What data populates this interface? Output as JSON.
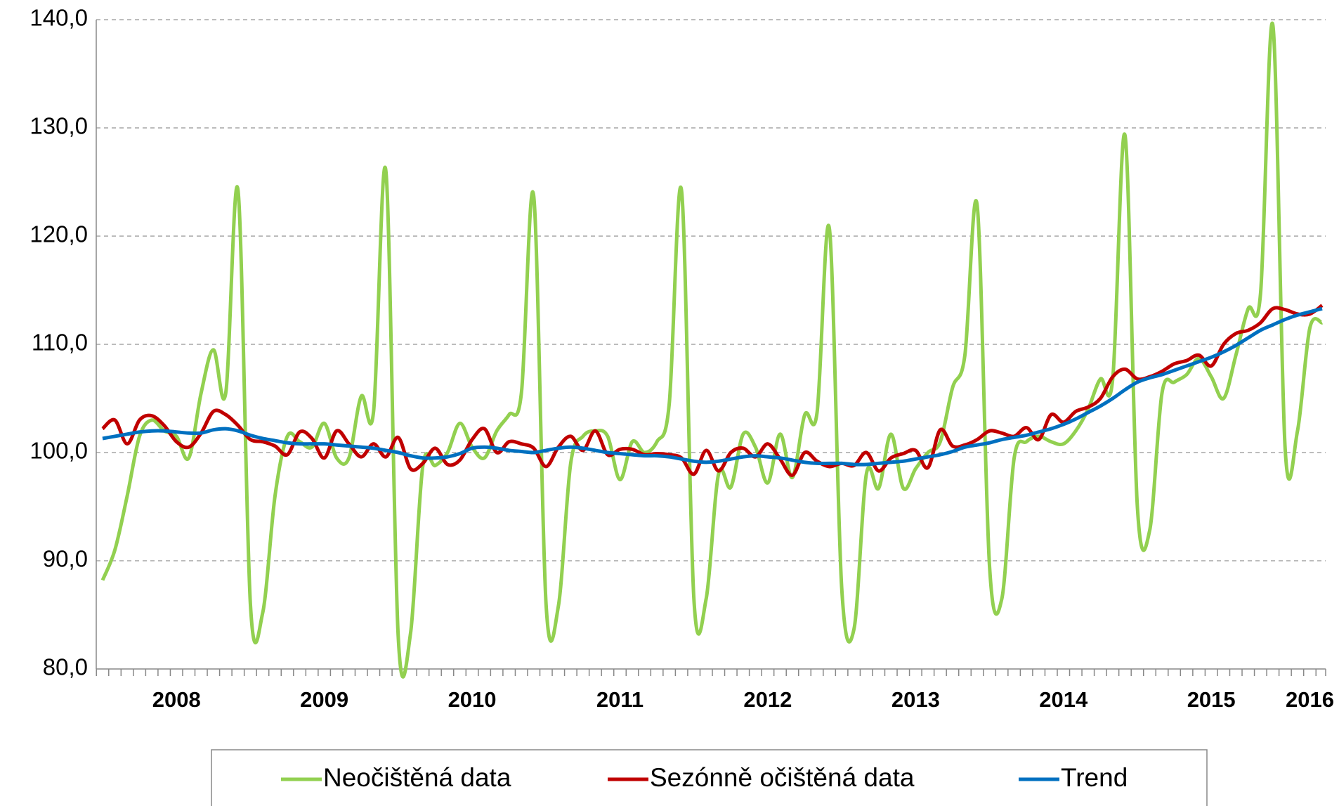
{
  "chart_data": {
    "type": "line",
    "categories": [
      null,
      null,
      null,
      null,
      null,
      null,
      "2008",
      null,
      null,
      null,
      null,
      null,
      null,
      null,
      null,
      null,
      null,
      null,
      "2009",
      null,
      null,
      null,
      null,
      null,
      null,
      null,
      null,
      null,
      null,
      null,
      "2010",
      null,
      null,
      null,
      null,
      null,
      null,
      null,
      null,
      null,
      null,
      null,
      "2011",
      null,
      null,
      null,
      null,
      null,
      null,
      null,
      null,
      null,
      null,
      null,
      "2012",
      null,
      null,
      null,
      null,
      null,
      null,
      null,
      null,
      null,
      null,
      null,
      "2013",
      null,
      null,
      null,
      null,
      null,
      null,
      null,
      null,
      null,
      null,
      null,
      "2014",
      null,
      null,
      null,
      null,
      null,
      null,
      null,
      null,
      null,
      null,
      null,
      "2015",
      null,
      null,
      null,
      null,
      null,
      null,
      null,
      "2016",
      null
    ],
    "series": [
      {
        "name": "Neočištěná data",
        "color": "#92d050",
        "values": [
          88.2,
          91,
          96,
          101.5,
          103,
          102,
          101.5,
          99.5,
          105.5,
          109.5,
          105.5,
          124.2,
          86,
          85.2,
          96,
          101.5,
          101,
          100.5,
          102.7,
          99.5,
          99.5,
          105.2,
          103.8,
          126,
          83,
          83.3,
          98.8,
          98.8,
          100,
          102.7,
          100.5,
          99.5,
          102,
          103.5,
          105.5,
          123.7,
          86,
          85.8,
          99,
          101.5,
          102,
          101.5,
          97.5,
          101,
          100,
          101,
          104.5,
          124.2,
          86.5,
          86.5,
          98,
          96.8,
          101.7,
          100.5,
          97.2,
          101.7,
          97.7,
          103.5,
          103.7,
          120.7,
          87.5,
          83.7,
          98,
          96.7,
          101.7,
          96.7,
          98.5,
          100,
          101,
          106,
          109,
          122.8,
          89.5,
          86.5,
          99.5,
          101,
          101.5,
          101,
          100.8,
          102,
          104,
          106.8,
          106.8,
          129.3,
          95,
          92.8,
          105.5,
          106.5,
          107.2,
          108.7,
          107,
          105,
          109,
          113.3,
          114.7,
          139.5,
          100.3,
          102,
          111.5,
          112
        ]
      },
      {
        "name": "Sezónně očištěná data",
        "color": "#c00000",
        "values": [
          102.2,
          103,
          100.8,
          103,
          103.4,
          102.5,
          101,
          100.5,
          101.8,
          103.8,
          103.5,
          102.5,
          101.2,
          101,
          100.6,
          99.8,
          101.9,
          101.3,
          99.5,
          102,
          100.8,
          99.6,
          100.8,
          99.6,
          101.4,
          98.5,
          99,
          100.4,
          98.9,
          99.3,
          101.2,
          102.2,
          100,
          101,
          100.8,
          100.4,
          98.7,
          100.5,
          101.5,
          100.2,
          102,
          99.8,
          100.3,
          100.3,
          99.8,
          99.9,
          99.8,
          99.5,
          98,
          100.2,
          98.3,
          100,
          100.4,
          99.6,
          100.8,
          99.4,
          97.9,
          100,
          99.2,
          98.7,
          99,
          98.8,
          100,
          98.3,
          99.5,
          99.9,
          100.2,
          98.6,
          102.1,
          100.6,
          100.7,
          101.2,
          102,
          101.8,
          101.5,
          102.3,
          101.2,
          103.5,
          102.8,
          103.8,
          104.2,
          105,
          107,
          107.7,
          106.8,
          107,
          107.5,
          108.2,
          108.5,
          109,
          108,
          110,
          111,
          111.3,
          112,
          113.3,
          113.2,
          112.8,
          112.8,
          113.6
        ]
      },
      {
        "name": "Trend",
        "color": "#0070c0",
        "values": [
          101.3,
          101.5,
          101.7,
          101.9,
          102,
          102,
          101.9,
          101.8,
          101.8,
          102.1,
          102.2,
          102,
          101.6,
          101.3,
          101.1,
          100.9,
          100.8,
          100.8,
          100.8,
          100.7,
          100.6,
          100.5,
          100.4,
          100.2,
          100,
          99.7,
          99.5,
          99.5,
          99.6,
          99.9,
          100.4,
          100.5,
          100.4,
          100.2,
          100.1,
          100,
          100.2,
          100.4,
          100.5,
          100.4,
          100.2,
          100,
          99.9,
          99.8,
          99.7,
          99.7,
          99.6,
          99.4,
          99.2,
          99.1,
          99.2,
          99.4,
          99.6,
          99.7,
          99.6,
          99.5,
          99.3,
          99.1,
          99,
          99,
          99,
          98.9,
          98.9,
          99,
          99.1,
          99.2,
          99.4,
          99.6,
          99.8,
          100.1,
          100.5,
          100.7,
          100.9,
          101.2,
          101.4,
          101.6,
          101.9,
          102.2,
          102.6,
          103.1,
          103.7,
          104.3,
          105,
          105.8,
          106.5,
          106.9,
          107.2,
          107.6,
          108,
          108.4,
          108.8,
          109.3,
          109.9,
          110.6,
          111.3,
          111.8,
          112.3,
          112.7,
          113,
          113.3
        ]
      }
    ],
    "ylim": [
      80,
      140
    ],
    "yticks": [
      {
        "value": 80,
        "label": "80,0"
      },
      {
        "value": 90,
        "label": "90,0"
      },
      {
        "value": 100,
        "label": "100,0"
      },
      {
        "value": 110,
        "label": "110,0"
      },
      {
        "value": 120,
        "label": "120,0"
      },
      {
        "value": 130,
        "label": "130,0"
      },
      {
        "value": 140,
        "label": "140,0"
      }
    ],
    "grid": true,
    "legend": "bottom"
  }
}
